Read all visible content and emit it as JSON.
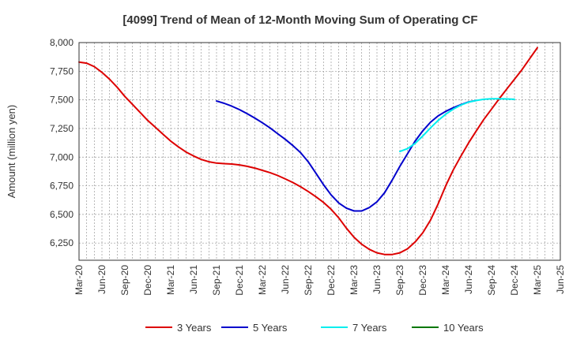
{
  "chart_data": {
    "type": "line",
    "title": "[4099]  Trend of Mean of 12-Month Moving Sum of Operating CF",
    "xlabel": "",
    "ylabel": "Amount (million yen)",
    "ylim": [
      6100,
      8000
    ],
    "y_ticks": [
      8000,
      7750,
      7500,
      7250,
      7000,
      6750,
      6500,
      6250
    ],
    "y_tick_labels": [
      "8,000",
      "7,750",
      "7,500",
      "7,250",
      "7,000",
      "6,750",
      "6,500",
      "6,250"
    ],
    "x_tick_labels": [
      "Mar-20",
      "Jun-20",
      "Sep-20",
      "Dec-20",
      "Mar-21",
      "Jun-21",
      "Sep-21",
      "Dec-21",
      "Mar-22",
      "Jun-22",
      "Sep-22",
      "Dec-22",
      "Mar-23",
      "Jun-23",
      "Sep-23",
      "Dec-23",
      "Mar-24",
      "Jun-24",
      "Sep-24",
      "Dec-24",
      "Mar-25",
      "Jun-25"
    ],
    "x_start": "Mar-20",
    "x_months": 63,
    "grid": true,
    "legend_position": "bottom",
    "series": [
      {
        "name": "3 Years",
        "color": "#dd0000",
        "start_offset": 0,
        "values": [
          7830,
          7820,
          7790,
          7740,
          7680,
          7610,
          7530,
          7460,
          7390,
          7320,
          7260,
          7200,
          7140,
          7090,
          7045,
          7010,
          6980,
          6960,
          6948,
          6943,
          6940,
          6932,
          6920,
          6905,
          6885,
          6865,
          6840,
          6810,
          6778,
          6742,
          6700,
          6655,
          6605,
          6545,
          6470,
          6380,
          6300,
          6240,
          6195,
          6165,
          6150,
          6150,
          6165,
          6200,
          6260,
          6340,
          6450,
          6590,
          6750,
          6890,
          7010,
          7125,
          7230,
          7330,
          7420,
          7510,
          7595,
          7680,
          7765,
          7860,
          7955
        ]
      },
      {
        "name": "5 Years",
        "color": "#0000cc",
        "start_offset": 18,
        "values": [
          7490,
          7470,
          7445,
          7415,
          7380,
          7342,
          7300,
          7255,
          7205,
          7155,
          7100,
          7040,
          6960,
          6860,
          6760,
          6670,
          6600,
          6555,
          6530,
          6530,
          6560,
          6610,
          6690,
          6800,
          6920,
          7030,
          7140,
          7230,
          7305,
          7360,
          7400,
          7432,
          7458,
          7482,
          7495
        ]
      },
      {
        "name": "7 Years",
        "color": "#00eeee",
        "start_offset": 42,
        "values": [
          7050,
          7075,
          7120,
          7185,
          7255,
          7320,
          7375,
          7420,
          7455,
          7480,
          7495,
          7505,
          7510,
          7510,
          7508,
          7505
        ]
      },
      {
        "name": "10 Years",
        "color": "#007700",
        "start_offset": 0,
        "values": []
      }
    ]
  }
}
